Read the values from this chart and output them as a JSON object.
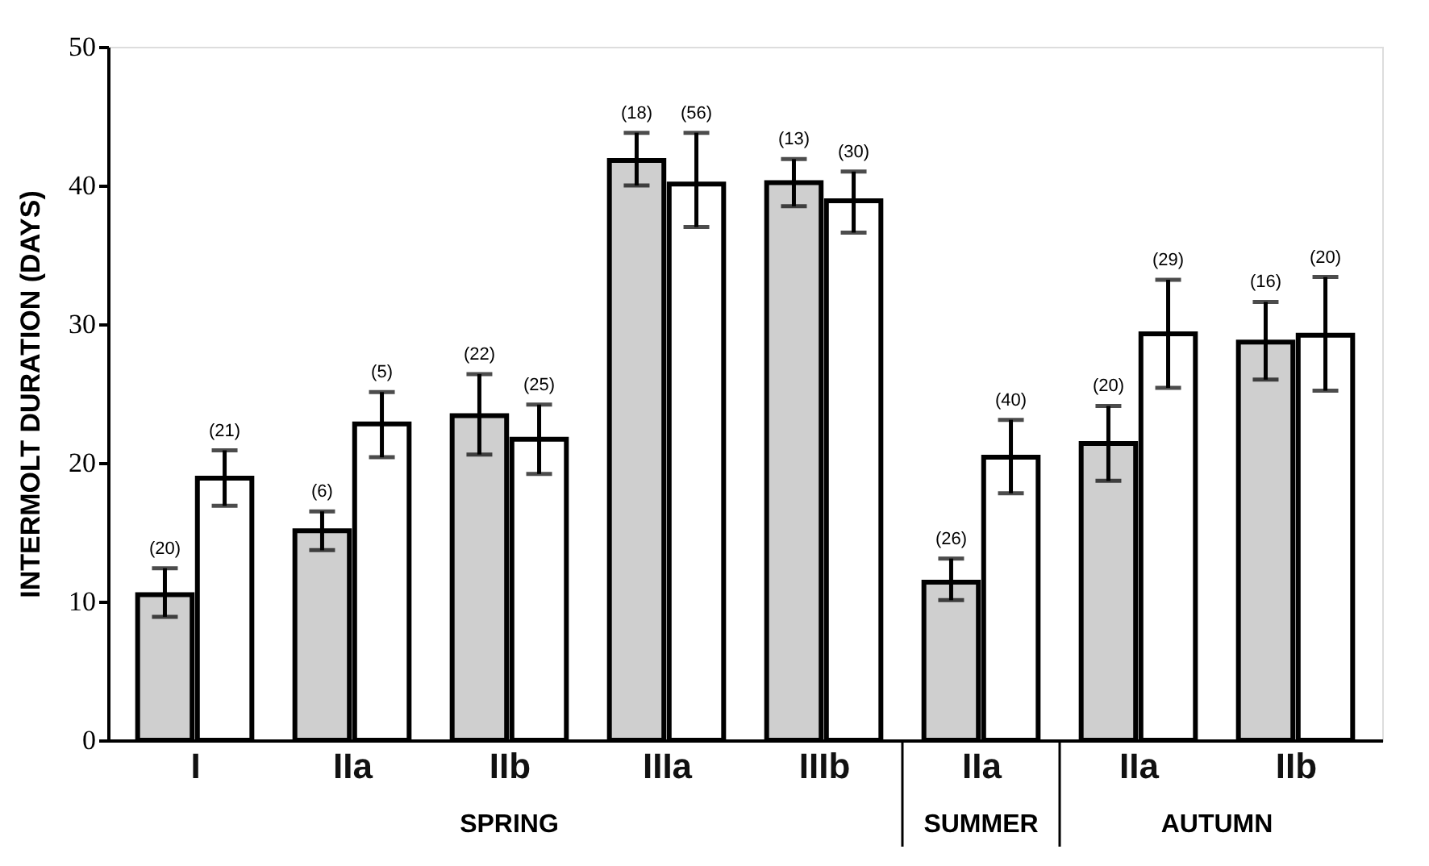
{
  "chart_data": {
    "type": "bar",
    "ylabel": "INTERMOLT DURATION  (DAYS)",
    "categories": [
      "I",
      "IIa",
      "IIb",
      "IIIa",
      "IIIb",
      "IIa",
      "IIa",
      "IIb"
    ],
    "series": [
      {
        "color": "#cfcfcf",
        "values": [
          10.5,
          15.1,
          23.4,
          41.8,
          40.2,
          11.4,
          21.4,
          28.7
        ],
        "errors": [
          [
            8.9,
            12.4
          ],
          [
            13.7,
            16.5
          ],
          [
            20.6,
            26.4
          ],
          [
            40.0,
            43.8
          ],
          [
            38.5,
            41.9
          ],
          [
            10.1,
            13.1
          ],
          [
            18.7,
            24.1
          ],
          [
            26.0,
            31.6
          ]
        ]
      },
      {
        "color": "#ffffff",
        "values": [
          18.9,
          22.8,
          21.7,
          40.1,
          38.9,
          20.4,
          29.3,
          29.2
        ],
        "errors": [
          [
            16.9,
            20.9
          ],
          [
            20.4,
            25.1
          ],
          [
            19.2,
            24.2
          ],
          [
            37.0,
            43.8
          ],
          [
            36.6,
            41.0
          ],
          [
            17.8,
            23.1
          ],
          [
            25.4,
            33.2
          ],
          [
            25.2,
            33.4
          ]
        ]
      }
    ],
    "ylim": [
      0,
      50
    ],
    "yticks": [
      0,
      10,
      20,
      30,
      40,
      50
    ],
    "grid": false,
    "legend": false,
    "annotations": [
      "(20)",
      "(21)",
      "(6)",
      "(5)",
      "(22)",
      "(25)",
      "(18)",
      "(56)",
      "(13)",
      "(30)",
      "(26)",
      "(40)",
      "(20)",
      "(29)",
      "(16)",
      "(20)",
      "SPRING",
      "SUMMER",
      "AUTUMN"
    ]
  }
}
